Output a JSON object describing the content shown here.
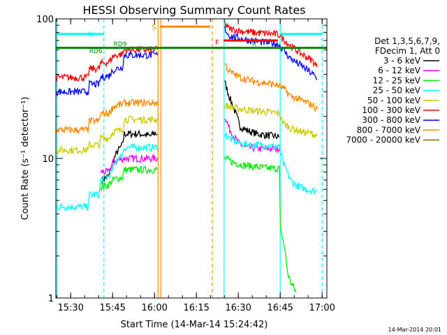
{
  "title": "HESSI Observing Summary Count Rates",
  "footer_timestamp": "14-Mar-2014 20:01",
  "legend_header": [
    "Det 1,3,5,6,7,9,",
    "FDecim 1, Att 0"
  ],
  "chart_data": {
    "type": "line",
    "title": "HESSI Observing Summary Count Rates",
    "xlabel": "Start Time (14-Mar-14 15:24:42)",
    "ylabel": "Count Rate (s⁻¹ detector⁻¹)",
    "x_unit": "minutes since 15:24:42",
    "xlim": [
      0,
      97
    ],
    "ylim": [
      1,
      100
    ],
    "y_scale": "log",
    "x_ticks": [
      {
        "x": 5.3,
        "label": "15:30"
      },
      {
        "x": 20.3,
        "label": "15:45"
      },
      {
        "x": 35.3,
        "label": "16:00"
      },
      {
        "x": 50.3,
        "label": "16:15"
      },
      {
        "x": 65.3,
        "label": "16:30"
      },
      {
        "x": 80.3,
        "label": "16:45"
      },
      {
        "x": 95.3,
        "label": "17:00"
      }
    ],
    "y_ticks": [
      {
        "y": 1,
        "label": "1"
      },
      {
        "y": 10,
        "label": "10"
      },
      {
        "y": 100,
        "label": "100"
      }
    ],
    "series": [
      {
        "name": "3 - 6 keV",
        "color": "#000000",
        "points": [
          [
            16.5,
            7
          ],
          [
            19,
            7.5
          ],
          [
            20.5,
            9.6
          ],
          [
            22,
            11.2
          ],
          [
            23.8,
            12.5
          ],
          [
            24.5,
            15
          ],
          [
            30,
            15
          ],
          [
            34,
            14.5
          ],
          [
            35.3,
            15.2
          ],
          [
            36.6,
            15
          ],
          [
            60.5,
            35
          ],
          [
            62,
            28
          ],
          [
            64,
            22
          ],
          [
            66,
            17
          ],
          [
            68,
            16
          ],
          [
            70,
            15.5
          ],
          [
            72,
            15
          ],
          [
            74,
            14.8
          ],
          [
            76,
            14.6
          ],
          [
            78,
            14.5
          ],
          [
            80,
            14.2
          ]
        ]
      },
      {
        "name": "6 - 12 keV",
        "color": "#ff00ff",
        "points": [
          [
            16,
            8
          ],
          [
            19,
            8
          ],
          [
            20.5,
            9.5
          ],
          [
            23,
            9.8
          ],
          [
            24.5,
            10
          ],
          [
            30,
            10
          ],
          [
            34,
            10
          ],
          [
            36.6,
            10
          ],
          [
            60.5,
            20
          ],
          [
            62,
            16.5
          ],
          [
            64,
            14
          ],
          [
            66,
            12.5
          ],
          [
            68,
            12
          ],
          [
            72,
            11.8
          ],
          [
            76,
            11.7
          ],
          [
            80,
            11.8
          ]
        ]
      },
      {
        "name": "12 - 25 keV",
        "color": "#00ee00",
        "points": [
          [
            16,
            6.2
          ],
          [
            19,
            6.5
          ],
          [
            20.5,
            7
          ],
          [
            22,
            7.2
          ],
          [
            23.8,
            7.3
          ],
          [
            24.5,
            8.3
          ],
          [
            30,
            8.3
          ],
          [
            34,
            8.3
          ],
          [
            36.6,
            8.3
          ],
          [
            60.5,
            10
          ],
          [
            64,
            9.3
          ],
          [
            68,
            8.9
          ],
          [
            72,
            8.7
          ],
          [
            76,
            8.5
          ],
          [
            80,
            8.5
          ],
          [
            80.4,
            3
          ],
          [
            81,
            2.8
          ],
          [
            82,
            2.2
          ],
          [
            83,
            1.5
          ],
          [
            84,
            1.3
          ],
          [
            85,
            1.2
          ],
          [
            86,
            1.1
          ]
        ]
      },
      {
        "name": "25 - 50 keV",
        "color": "#00ffff",
        "points": [
          [
            0,
            4.5
          ],
          [
            5,
            4.5
          ],
          [
            11.5,
            4.5
          ],
          [
            12,
            5.5
          ],
          [
            15.5,
            5.5
          ],
          [
            16,
            7
          ],
          [
            19,
            7.5
          ],
          [
            20.5,
            8.5
          ],
          [
            22,
            10
          ],
          [
            23.8,
            10.5
          ],
          [
            24.5,
            12
          ],
          [
            30,
            12
          ],
          [
            34,
            12
          ],
          [
            36.6,
            12
          ],
          [
            60.5,
            15
          ],
          [
            62,
            14
          ],
          [
            64,
            13.3
          ],
          [
            66,
            12.8
          ],
          [
            70,
            12.5
          ],
          [
            74,
            12.5
          ],
          [
            78,
            12.2
          ],
          [
            80,
            12
          ],
          [
            81.3,
            9.3
          ],
          [
            84,
            7
          ],
          [
            86,
            6.4
          ],
          [
            90,
            6
          ],
          [
            93.5,
            5.8
          ]
        ]
      },
      {
        "name": "50 - 100 keV",
        "color": "#cccc00",
        "points": [
          [
            0,
            11.5
          ],
          [
            5,
            11.5
          ],
          [
            11.5,
            11.5
          ],
          [
            12,
            12.5
          ],
          [
            15.5,
            12.5
          ],
          [
            16,
            14
          ],
          [
            19,
            14
          ],
          [
            20.5,
            15.5
          ],
          [
            23.8,
            16
          ],
          [
            24.5,
            19
          ],
          [
            30,
            19
          ],
          [
            34,
            19
          ],
          [
            36.6,
            19
          ],
          [
            60.5,
            24
          ],
          [
            64,
            23
          ],
          [
            70,
            22
          ],
          [
            76,
            21.5
          ],
          [
            80,
            21
          ],
          [
            81.3,
            18
          ],
          [
            84,
            16.5
          ],
          [
            88,
            15.5
          ],
          [
            92,
            15
          ],
          [
            93.5,
            14.5
          ]
        ]
      },
      {
        "name": "100 - 300 keV",
        "color": "#ff0000",
        "points": [
          [
            0,
            38
          ],
          [
            5,
            38
          ],
          [
            11.5,
            38
          ],
          [
            12,
            44
          ],
          [
            15.5,
            44
          ],
          [
            16,
            48
          ],
          [
            19,
            49
          ],
          [
            20.5,
            54
          ],
          [
            22,
            55
          ],
          [
            23.8,
            56
          ],
          [
            24.5,
            60
          ],
          [
            30,
            60
          ],
          [
            34,
            60
          ],
          [
            36.6,
            60
          ],
          [
            60.5,
            92
          ],
          [
            62,
            85
          ],
          [
            66,
            82
          ],
          [
            70,
            80
          ],
          [
            74,
            79
          ],
          [
            78,
            78
          ],
          [
            80,
            77
          ],
          [
            81.3,
            72
          ],
          [
            84,
            64
          ],
          [
            88,
            56
          ],
          [
            92,
            50
          ],
          [
            93.5,
            45
          ]
        ]
      },
      {
        "name": "300 - 800 keV",
        "color": "#0000ff",
        "points": [
          [
            0,
            30
          ],
          [
            5,
            30
          ],
          [
            11.5,
            30
          ],
          [
            12,
            34
          ],
          [
            15.5,
            34
          ],
          [
            16,
            38
          ],
          [
            19,
            39
          ],
          [
            20.5,
            43
          ],
          [
            22,
            44
          ],
          [
            23.8,
            45
          ],
          [
            24.5,
            55
          ],
          [
            30,
            55
          ],
          [
            34,
            55
          ],
          [
            36.6,
            55
          ],
          [
            60.5,
            85
          ],
          [
            62,
            76
          ],
          [
            66,
            72
          ],
          [
            70,
            70
          ],
          [
            74,
            68
          ],
          [
            78,
            67
          ],
          [
            80,
            65
          ],
          [
            81.3,
            60
          ],
          [
            84,
            52
          ],
          [
            88,
            46
          ],
          [
            92,
            40
          ],
          [
            93.5,
            37
          ]
        ]
      },
      {
        "name": "800 - 7000 keV",
        "color": "#ff8800",
        "points": [
          [
            0,
            16
          ],
          [
            5,
            16
          ],
          [
            11.5,
            16
          ],
          [
            12,
            18.5
          ],
          [
            15.5,
            18.5
          ],
          [
            16,
            21
          ],
          [
            19,
            21
          ],
          [
            20.5,
            23.5
          ],
          [
            22,
            24
          ],
          [
            23.8,
            24.5
          ],
          [
            24.5,
            25
          ],
          [
            30,
            25
          ],
          [
            34,
            25
          ],
          [
            36.6,
            25
          ],
          [
            60.5,
            48
          ],
          [
            62,
            42
          ],
          [
            66,
            38
          ],
          [
            70,
            36
          ],
          [
            74,
            35
          ],
          [
            78,
            34
          ],
          [
            80,
            33
          ],
          [
            81.3,
            32
          ],
          [
            84,
            28
          ],
          [
            88,
            26
          ],
          [
            92,
            24
          ],
          [
            93.5,
            22.5
          ]
        ]
      },
      {
        "name": "7000 - 20000 keV",
        "color": "#886600",
        "points": []
      }
    ]
  },
  "annotations": {
    "fill_bar": {
      "x_start": 0,
      "x_end": 97,
      "y": 62,
      "color": "#008800"
    },
    "night_left": {
      "x_start": 0,
      "x_end": 17,
      "y": 78,
      "label": "N",
      "color": "#00ffff"
    },
    "night_right": {
      "x_start": 80.5,
      "x_end": 95.5,
      "y": 78,
      "color": "#00ffff"
    },
    "saa_bar": {
      "x_start": 37.3,
      "x_end": 55.3,
      "y": 88,
      "label": "S",
      "color": "#ff8800"
    },
    "flare_bar": {
      "x_start": 60,
      "x_end": 79.5,
      "y": 70,
      "label": "F",
      "color": "#ff0000"
    },
    "rd_labels": [
      {
        "x": 14.3,
        "y": 57,
        "label": "RD6"
      },
      {
        "x": 23,
        "y": 64,
        "label": "RD9"
      },
      {
        "x": 71,
        "y": 64,
        "label": "R"
      }
    ],
    "vlines": [
      {
        "x": 0.4,
        "color": "#00ffff",
        "style": "solid"
      },
      {
        "x": 17.2,
        "color": "#00ffff",
        "style": "dashed"
      },
      {
        "x": 80.3,
        "color": "#00ffff",
        "style": "solid"
      },
      {
        "x": 95.3,
        "color": "#00ffff",
        "style": "dashed"
      },
      {
        "x": 36.6,
        "color": "#ff8800",
        "style": "solid"
      },
      {
        "x": 37.6,
        "color": "#ff8800",
        "style": "solid"
      },
      {
        "x": 56,
        "color": "#ff8800",
        "style": "dashed"
      },
      {
        "x": 60.2,
        "color": "#00ffff",
        "style": "solid"
      }
    ]
  }
}
